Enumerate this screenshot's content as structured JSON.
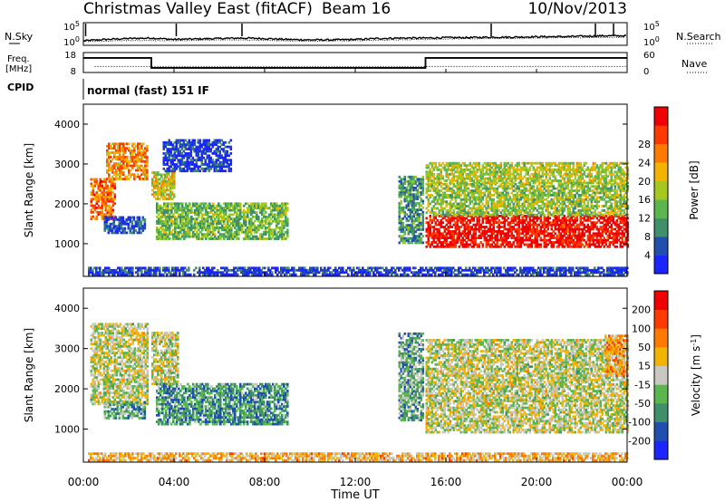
{
  "header": {
    "station": "Christmas Valley East (fitACF)",
    "beam": "Beam 16",
    "date": "10/Nov/2013",
    "cpid_label": "CPID",
    "cpid_value": "normal (fast) 151 IF"
  },
  "chart_data": [
    {
      "id": "noise",
      "type": "line",
      "left_label": "N.Sky",
      "right_label": "N.Search",
      "left_ticks": [
        "10^5",
        "10^0"
      ],
      "right_ticks": [
        "10^5",
        "10^0"
      ],
      "series": [
        {
          "name": "N.Sky",
          "style": "solid",
          "x": [
            0,
            1,
            2,
            3,
            4,
            5,
            6,
            7,
            8,
            9,
            10,
            11,
            12,
            13,
            14,
            15,
            16,
            17,
            18,
            19,
            20,
            21,
            22,
            23,
            24
          ],
          "y": [
            1.0,
            1.3,
            1.5,
            1.6,
            1.3,
            1.4,
            1.5,
            1.6,
            1.5,
            1.3,
            1.2,
            1.2,
            1.3,
            1.5,
            1.6,
            1.6,
            1.7,
            1.7,
            1.8,
            1.8,
            1.9,
            1.9,
            2.0,
            2.1,
            2.1
          ]
        },
        {
          "name": "N.Search",
          "style": "dotted",
          "x": [
            0,
            2,
            4,
            6,
            8,
            10,
            12,
            14,
            16,
            18,
            20,
            22,
            24
          ],
          "y": [
            0.8,
            1.1,
            1.0,
            1.2,
            1.1,
            0.9,
            1.0,
            1.2,
            1.4,
            1.5,
            1.6,
            1.7,
            1.8
          ]
        }
      ],
      "spikes_ut": [
        0.1,
        4.1,
        7.0,
        18.0,
        22.6,
        23.4
      ],
      "xlim": [
        0,
        24
      ]
    },
    {
      "id": "freq_nave",
      "type": "line",
      "left_label": "Freq. [MHz]",
      "right_label": "Nave",
      "left_ticks": [
        "18",
        "8"
      ],
      "right_ticks": [
        "60",
        "0"
      ],
      "ylim_left": [
        8,
        18
      ],
      "ylim_right": [
        0,
        60
      ],
      "series": [
        {
          "name": "Freq.",
          "style": "solid",
          "x": [
            0,
            3.0,
            3.0,
            15.1,
            15.1,
            24
          ],
          "y": [
            15.3,
            15.3,
            10.3,
            10.3,
            15.3,
            15.3
          ]
        },
        {
          "name": "Nave",
          "style": "dotted",
          "x": [
            0.5,
            24
          ],
          "y": [
            18,
            18
          ]
        }
      ]
    },
    {
      "id": "power",
      "type": "heatmap",
      "ylabel": "Slant Range [km]",
      "yticks": [
        "1000",
        "2000",
        "3000",
        "4000"
      ],
      "ylim": [
        180,
        4500
      ],
      "xlim": [
        0,
        24
      ],
      "colorbar_label": "Power [dB]",
      "colorbar_ticks": [
        "4",
        "8",
        "12",
        "16",
        "20",
        "24",
        "28"
      ],
      "colors": [
        "#1a24ff",
        "#214fb0",
        "#3f8f6a",
        "#5bb64e",
        "#a6c81e",
        "#f2b400",
        "#ff7a00",
        "#ff3a00",
        "#f00000"
      ],
      "regions": [
        {
          "t0": 0.3,
          "t1": 1.4,
          "r0": 1600,
          "r1": 2600,
          "level": 0.75
        },
        {
          "t0": 1.0,
          "t1": 2.8,
          "r0": 2600,
          "r1": 3500,
          "level": 0.7
        },
        {
          "t0": 0.9,
          "t1": 2.7,
          "r0": 1250,
          "r1": 1650,
          "level": 0.15
        },
        {
          "t0": 3.0,
          "t1": 4.0,
          "r0": 2100,
          "r1": 2800,
          "level": 0.55
        },
        {
          "t0": 3.2,
          "t1": 9.0,
          "r0": 1100,
          "r1": 2000,
          "level": 0.4
        },
        {
          "t0": 3.5,
          "t1": 6.5,
          "r0": 2800,
          "r1": 3600,
          "level": 0.1
        },
        {
          "t0": 0.2,
          "t1": 24.0,
          "r0": 200,
          "r1": 400,
          "level": 0.1
        },
        {
          "t0": 13.9,
          "t1": 15.0,
          "r0": 1000,
          "r1": 2700,
          "level": 0.3
        },
        {
          "t0": 15.1,
          "t1": 24.0,
          "r0": 900,
          "r1": 1700,
          "level": 0.95
        },
        {
          "t0": 15.1,
          "t1": 24.0,
          "r0": 1700,
          "r1": 2500,
          "level": 0.45
        },
        {
          "t0": 15.1,
          "t1": 24.0,
          "r0": 2500,
          "r1": 3000,
          "level": 0.5
        }
      ]
    },
    {
      "id": "velocity",
      "type": "heatmap",
      "ylabel": "Slant Range [km]",
      "yticks": [
        "1000",
        "2000",
        "3000",
        "4000"
      ],
      "ylim": [
        180,
        4500
      ],
      "xlim": [
        0,
        24
      ],
      "colorbar_label": "Velocity [m s^-1]",
      "colorbar_ticks": [
        "200",
        "100",
        "50",
        "15",
        "-15",
        "-50",
        "-100",
        "-200"
      ],
      "colors": [
        "#1a24ff",
        "#214fb0",
        "#3f8f6a",
        "#5bb64e",
        "#c8c8c0",
        "#f2b400",
        "#ff7a00",
        "#ff3a00",
        "#f00000"
      ],
      "regions": [
        {
          "t0": 0.3,
          "t1": 2.8,
          "r0": 1600,
          "r1": 3600,
          "level": 0.5
        },
        {
          "t0": 3.0,
          "t1": 4.2,
          "r0": 2100,
          "r1": 3400,
          "level": 0.5
        },
        {
          "t0": 0.9,
          "t1": 2.7,
          "r0": 1250,
          "r1": 1650,
          "level": 0.35
        },
        {
          "t0": 3.2,
          "t1": 9.0,
          "r0": 1100,
          "r1": 2100,
          "level": 0.3
        },
        {
          "t0": 0.2,
          "t1": 24.0,
          "r0": 200,
          "r1": 400,
          "level": 0.62
        },
        {
          "t0": 13.9,
          "t1": 15.0,
          "r0": 1200,
          "r1": 3400,
          "level": 0.35
        },
        {
          "t0": 15.1,
          "t1": 24.0,
          "r0": 900,
          "r1": 1700,
          "level": 0.5
        },
        {
          "t0": 15.1,
          "t1": 24.0,
          "r0": 1700,
          "r1": 3200,
          "level": 0.5
        },
        {
          "t0": 23.0,
          "t1": 24.0,
          "r0": 2300,
          "r1": 3300,
          "level": 0.65
        }
      ]
    }
  ],
  "x_axis": {
    "label": "Time UT",
    "ticks": [
      "00:00",
      "04:00",
      "08:00",
      "12:00",
      "16:00",
      "20:00",
      "00:00"
    ],
    "values": [
      0,
      4,
      8,
      12,
      16,
      20,
      24
    ]
  }
}
